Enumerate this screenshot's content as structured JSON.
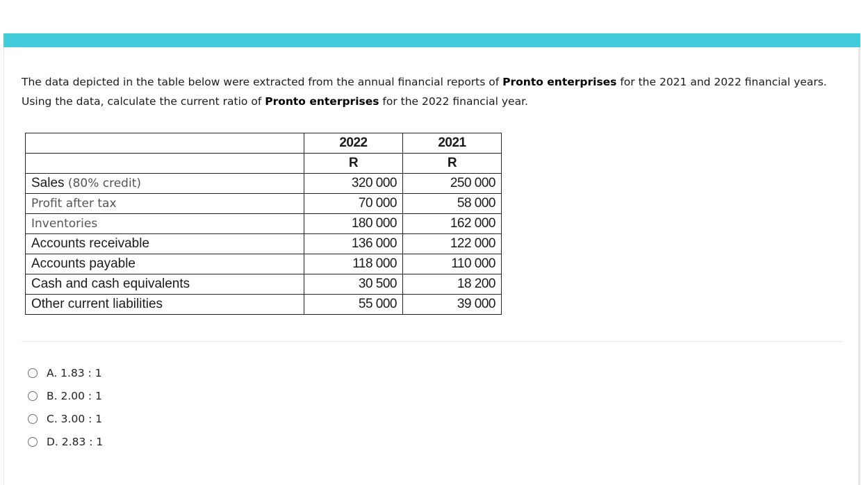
{
  "question": {
    "line1_pre": "The data depicted in the table below were extracted from the annual financial reports of ",
    "company": "Pronto enterprises",
    "line1_post": " for the 2021 and 2022 financial years.",
    "line2_pre": "Using the data, calculate the current ratio of ",
    "line2_post": " for the 2022 financial year."
  },
  "table": {
    "headers": [
      "",
      "2022",
      "2021"
    ],
    "currency_row": [
      "",
      "R",
      "R"
    ],
    "rows": [
      {
        "label": "Sales",
        "label_suffix": " (80% credit)",
        "y2022": "320 000",
        "y2021": "250 000"
      },
      {
        "label": "Profit after tax",
        "y2022": "70 000",
        "y2021": "58 000"
      },
      {
        "label": "Inventories",
        "y2022": "180 000",
        "y2021": "162 000"
      },
      {
        "label": "Accounts receivable",
        "y2022": "136 000",
        "y2021": "122 000"
      },
      {
        "label": "Accounts payable",
        "y2022": "118 000",
        "y2021": "110 000"
      },
      {
        "label": "Cash and cash equivalents",
        "y2022": "30 500",
        "y2021": "18 200"
      },
      {
        "label": "Other current liabilities",
        "y2022": "55 000",
        "y2021": "39 000"
      }
    ]
  },
  "options": [
    {
      "label": "A. 1.83 : 1",
      "selected": false
    },
    {
      "label": "B. 2.00 : 1",
      "selected": false
    },
    {
      "label": "C. 3.00 : 1",
      "selected": false
    },
    {
      "label": "D. 2.83 : 1",
      "selected": false
    }
  ],
  "colors": {
    "accent_bar": "#42cbdb"
  }
}
